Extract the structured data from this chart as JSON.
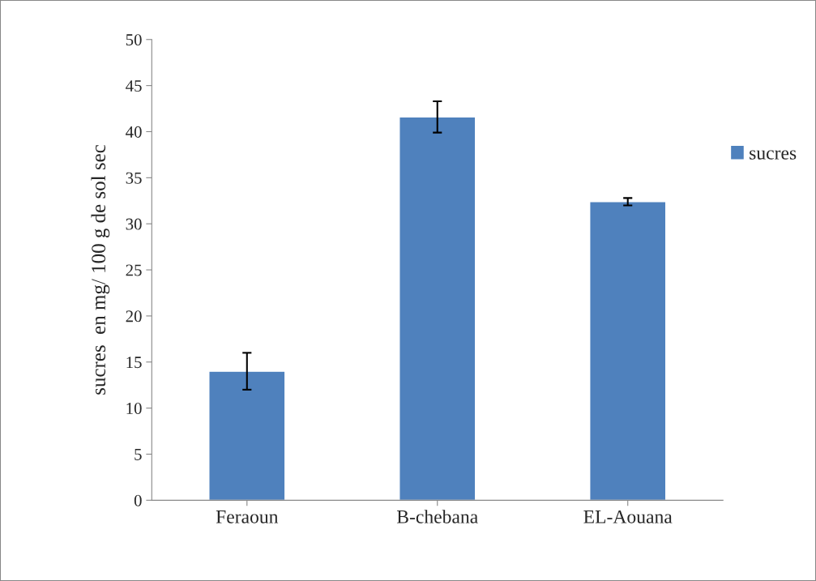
{
  "chart_data": {
    "type": "bar",
    "ylabel": "sucres  en mg/ 100 g de sol sec",
    "categories": [
      "Feraoun",
      "B-chebana",
      "EL-Aouana"
    ],
    "series": [
      {
        "name": "sucres",
        "color": "#4f81bd",
        "values": [
          14.0,
          41.6,
          32.4
        ],
        "errors": [
          2.0,
          1.7,
          0.4
        ]
      }
    ],
    "ylim": [
      0,
      50
    ],
    "yticks": [
      0,
      5,
      10,
      15,
      20,
      25,
      30,
      35,
      40,
      45,
      50
    ],
    "grid": false,
    "legend": "right"
  }
}
